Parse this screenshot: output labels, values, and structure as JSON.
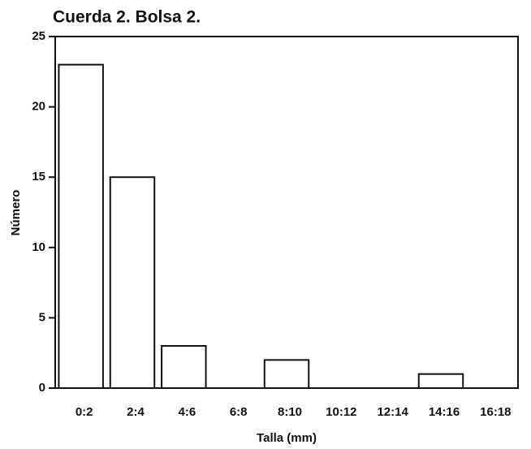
{
  "chart_data": {
    "type": "bar",
    "title": "Cuerda 2. Bolsa 2.",
    "x_label": "Talla (mm)",
    "y_label": "Número",
    "categories": [
      "0:2",
      "2:4",
      "4:6",
      "6:8",
      "8:10",
      "10:12",
      "12:14",
      "14:16",
      "16:18"
    ],
    "values": [
      23,
      15,
      3,
      0,
      2,
      0,
      0,
      1,
      0
    ],
    "color": "#ffffff",
    "ylim": [
      0,
      25
    ],
    "yticks": [
      0,
      5,
      10,
      15,
      20,
      25
    ],
    "grid": false
  }
}
